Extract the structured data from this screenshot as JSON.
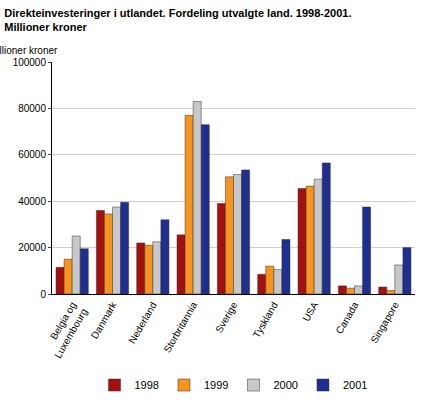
{
  "chart_data": {
    "type": "bar",
    "title": "Direkteinvesteringer i utlandet. Fordeling utvalgte land. 1998-2001.\nMillioner kroner",
    "ylabel": "Millioner kroner",
    "categories": [
      "Belgia og\nLuxembourg",
      "Danmark",
      "Nederland",
      "Storbritannia",
      "Sverige",
      "Tyskland",
      "USA",
      "Canada",
      "Singapore"
    ],
    "series": [
      {
        "name": "1998",
        "color": "#a50f0f",
        "values": [
          11500,
          36000,
          22000,
          25500,
          39000,
          8500,
          45500,
          3500,
          3000
        ]
      },
      {
        "name": "1999",
        "color": "#f7941d",
        "values": [
          15000,
          34500,
          21000,
          77000,
          50500,
          12000,
          46500,
          2500,
          1500
        ]
      },
      {
        "name": "2000",
        "color": "#c8c8c8",
        "values": [
          25000,
          37500,
          22500,
          83000,
          51500,
          10500,
          49500,
          3500,
          12500
        ]
      },
      {
        "name": "2001",
        "color": "#1f2f8f",
        "values": [
          19500,
          39500,
          32000,
          73000,
          53500,
          23500,
          56500,
          37500,
          20000
        ]
      }
    ],
    "ylim": [
      0,
      100000
    ],
    "yticks": [
      0,
      20000,
      40000,
      60000,
      80000,
      100000
    ],
    "grid": true,
    "legend": "bottom"
  }
}
